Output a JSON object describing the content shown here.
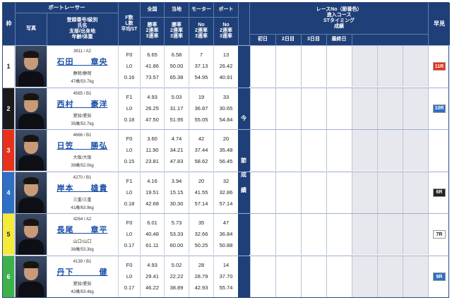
{
  "header": {
    "waku": "枠",
    "boat_racer": "ボートレーサー",
    "photo": "写真",
    "racer_info": [
      "登録番号/級別",
      "氏名",
      "支部/出身地",
      "年齢/体重"
    ],
    "f_l_st": [
      "F数",
      "L数",
      "平均ST"
    ],
    "national": "全国",
    "local": "当地",
    "motor": "モーター",
    "boat": "ボート",
    "rates_a": [
      "勝率",
      "2連率",
      "3連率"
    ],
    "rates_b": [
      "No",
      "2連率",
      "3連率"
    ],
    "race_info": [
      "レースNo（節番色）",
      "進入コース",
      "STタイミング",
      "成績"
    ],
    "days": [
      "初日",
      "2日目",
      "3日目",
      "最終日"
    ],
    "hayami": "早見"
  },
  "band_text": [
    "今",
    "節",
    "成",
    "績"
  ],
  "racers": [
    {
      "waku": "1",
      "waku_bg": "#ffffff",
      "waku_fg": "#222222",
      "reg": "3811 / A2",
      "name": "石田　　章央",
      "branch": "静岡/静岡",
      "age": "47歳/53.7kg",
      "f": "F0",
      "l": "L0",
      "st": "0.16",
      "nat": [
        "6.65",
        "41.86",
        "73.57"
      ],
      "loc": [
        "6.58",
        "50.00",
        "65.38"
      ],
      "motor": [
        "7",
        "37.13",
        "54.95"
      ],
      "boat": [
        "13",
        "26.42",
        "40.91"
      ],
      "hayami": "11R",
      "hayami_bg": "#e8311a",
      "hayami_fg": "#ffffff"
    },
    {
      "waku": "2",
      "waku_bg": "#1a1a1a",
      "waku_fg": "#ffffff",
      "reg": "4565 / B1",
      "name": "西村　　豪洋",
      "branch": "愛知/愛知",
      "age": "35歳/52.7kg",
      "f": "F1",
      "l": "L0",
      "st": "0.18",
      "nat": [
        "4.93",
        "26.25",
        "47.50"
      ],
      "loc": [
        "5.03",
        "31.17",
        "51.95"
      ],
      "motor": [
        "19",
        "36.87",
        "55.05"
      ],
      "boat": [
        "33",
        "30.65",
        "54.84"
      ],
      "hayami": "10R",
      "hayami_bg": "#2e6fc4",
      "hayami_fg": "#ffffff"
    },
    {
      "waku": "3",
      "waku_bg": "#e8311a",
      "waku_fg": "#ffffff",
      "reg": "4666 / B1",
      "name": "日笠　　勝弘",
      "branch": "大阪/大阪",
      "age": "39歳/52.0kg",
      "f": "F0",
      "l": "L0",
      "st": "0.15",
      "nat": [
        "3.60",
        "11.90",
        "23.81"
      ],
      "loc": [
        "4.74",
        "34.21",
        "47.83"
      ],
      "motor": [
        "42",
        "37.44",
        "58.62"
      ],
      "boat": [
        "20",
        "35.48",
        "56.45"
      ],
      "hayami": "",
      "hayami_bg": "",
      "hayami_fg": ""
    },
    {
      "waku": "4",
      "waku_bg": "#2e6fc4",
      "waku_fg": "#ffffff",
      "reg": "4270 / B1",
      "name": "岸本　　雄貴",
      "branch": "三重/三重",
      "age": "41歳/63.9kg",
      "f": "F1",
      "l": "L0",
      "st": "0.18",
      "nat": [
        "4.16",
        "19.51",
        "42.68"
      ],
      "loc": [
        "3.94",
        "15.15",
        "30.30"
      ],
      "motor": [
        "20",
        "41.55",
        "57.14"
      ],
      "boat": [
        "32",
        "32.86",
        "57.14"
      ],
      "hayami": "6R",
      "hayami_bg": "#222222",
      "hayami_fg": "#ffffff"
    },
    {
      "waku": "5",
      "waku_bg": "#f5e93a",
      "waku_fg": "#222222",
      "reg": "4264 / A2",
      "name": "長尾　　章平",
      "branch": "山口/山口",
      "age": "38歳/53.3kg",
      "f": "F0",
      "l": "L0",
      "st": "0.17",
      "nat": [
        "6.01",
        "40.48",
        "61.11"
      ],
      "loc": [
        "5.73",
        "53.33",
        "60.00"
      ],
      "motor": [
        "35",
        "32.66",
        "50.25"
      ],
      "boat": [
        "47",
        "36.84",
        "50.88"
      ],
      "hayami": "7R",
      "hayami_bg": "#ffffff",
      "hayami_fg": "#222222"
    },
    {
      "waku": "6",
      "waku_bg": "#3bb34a",
      "waku_fg": "#ffffff",
      "reg": "4139 / B1",
      "name": "丹下　　　健",
      "branch": "愛知/愛知",
      "age": "42歳/53.4kg",
      "f": "F0",
      "l": "L0",
      "st": "0.17",
      "nat": [
        "4.93",
        "29.41",
        "46.22"
      ],
      "loc": [
        "5.02",
        "22.22",
        "38.89"
      ],
      "motor": [
        "28",
        "28.79",
        "42.93"
      ],
      "boat": [
        "14",
        "37.70",
        "55.74"
      ],
      "hayami": "9R",
      "hayami_bg": "#2e6fc4",
      "hayami_fg": "#ffffff"
    }
  ]
}
